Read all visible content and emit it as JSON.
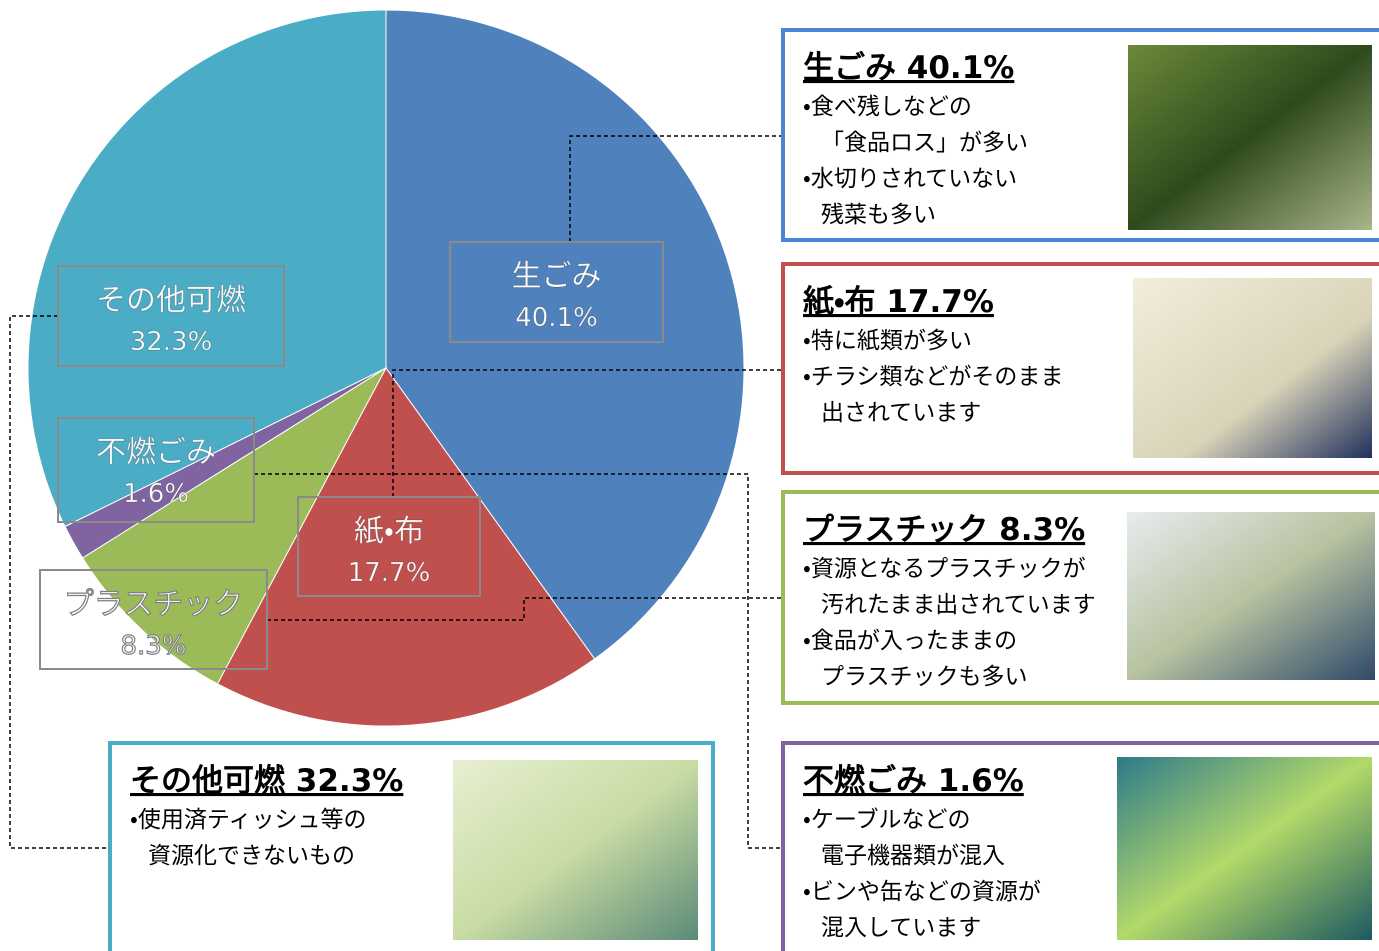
{
  "chart_data": {
    "type": "pie",
    "categories": [
      "生ごみ",
      "紙・布",
      "プラスチック",
      "不燃ごみ",
      "その他可燃"
    ],
    "values": [
      40.1,
      17.7,
      8.3,
      1.6,
      32.3
    ],
    "value_labels": [
      "40.1%",
      "17.7%",
      "8.3%",
      "1.6%",
      "32.3%"
    ],
    "colors": [
      "#4f81bd",
      "#c0504d",
      "#9bbb59",
      "#8064a2",
      "#4bacc6"
    ]
  },
  "callouts": [
    {
      "title": "生ごみ 40.1%",
      "lines": [
        "・食べ残しなどの",
        "「食品ロス」が多い",
        "・水切りされていない",
        "残菜も多い"
      ]
    },
    {
      "title": "紙・布 17.7%",
      "lines": [
        "・特に紙類が多い",
        "・チラシ類などがそのまま",
        "出されています"
      ]
    },
    {
      "title": "プラスチック  8.3%",
      "lines": [
        "・資源となるプラスチックが",
        "汚れたまま出されています",
        "・食品が入ったままの",
        "プラスチックも多い"
      ]
    },
    {
      "title": "不燃ごみ 1.6%",
      "lines": [
        "・ケーブルなどの",
        "電子機器類が混入",
        "・ビンや缶などの資源が",
        "混入しています"
      ]
    },
    {
      "title": "その他可燃 32.3%",
      "lines": [
        "・使用済ティッシュ等の",
        "資源化できないもの"
      ]
    }
  ]
}
